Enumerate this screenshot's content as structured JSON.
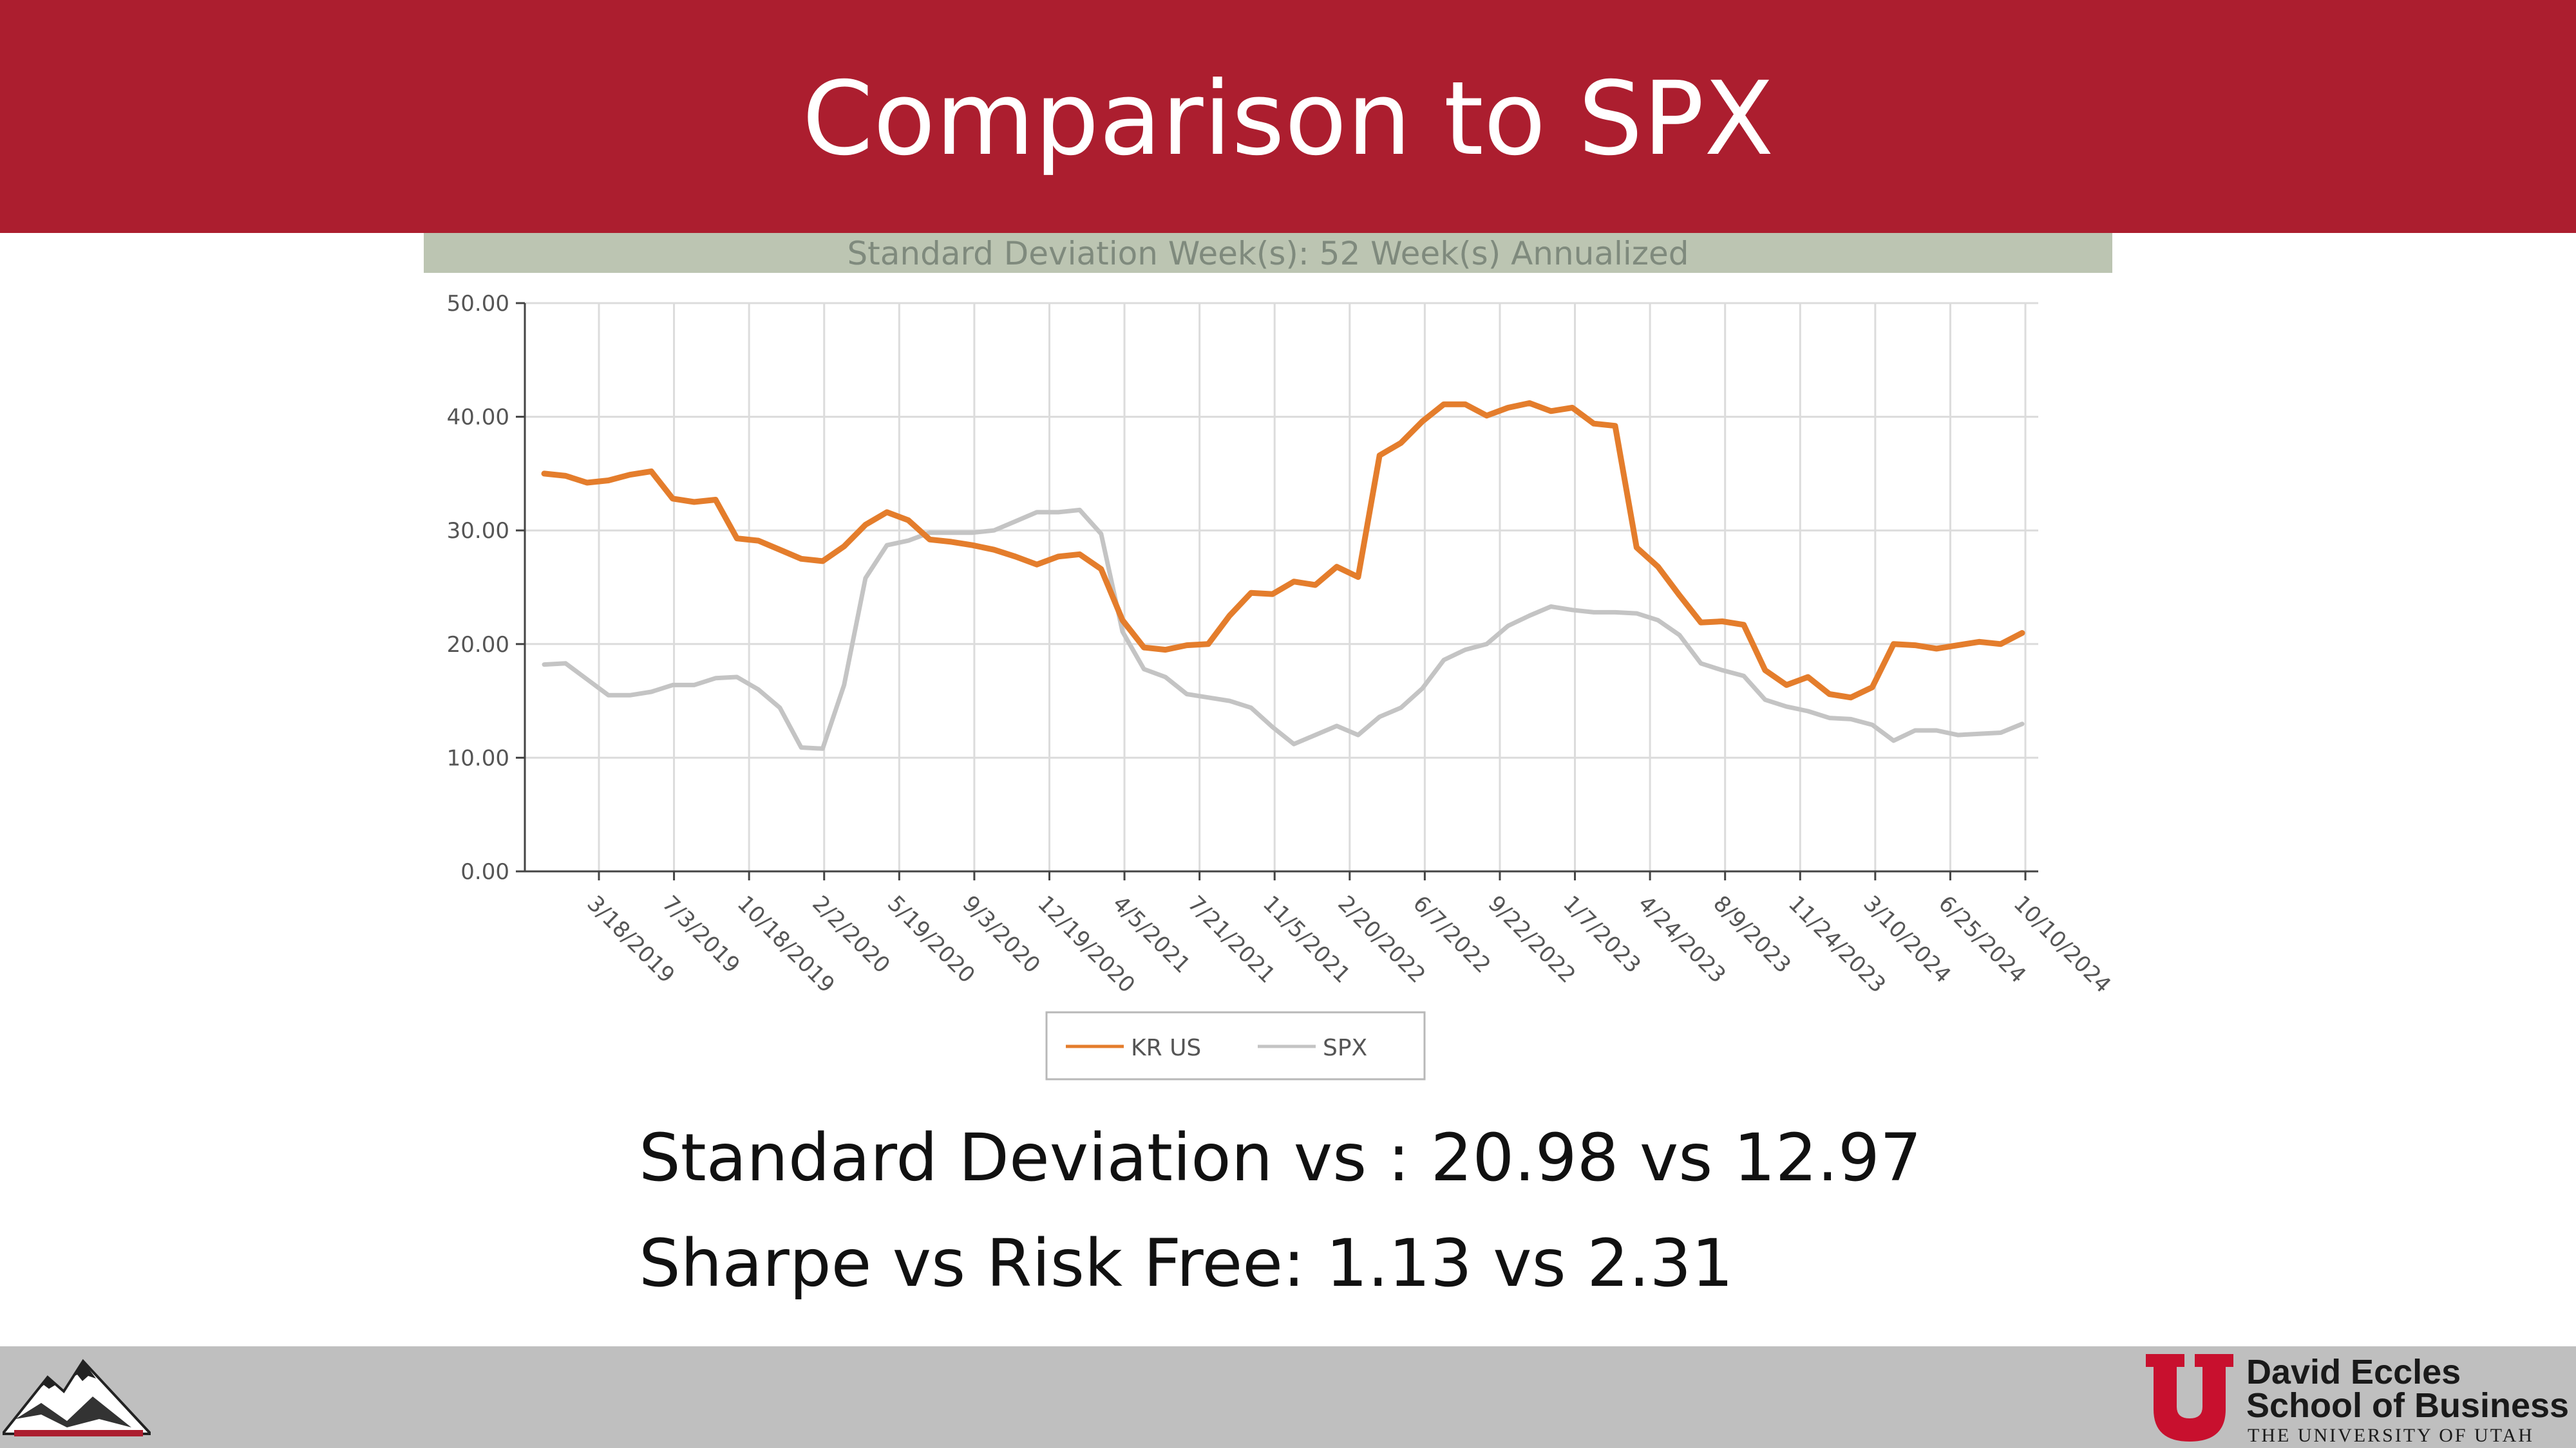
{
  "slide": {
    "title": "Comparison to SPX",
    "stats": [
      "Standard Deviation vs : 20.98 vs 12.97",
      "Sharpe vs Risk Free: 1.13 vs 2.31"
    ]
  },
  "footer": {
    "left_logo_icon": "mountain-logo-icon",
    "right_logo_icon": "university-u-logo-icon",
    "school_name_line1": "David Eccles",
    "school_name_line2": "School of Business",
    "university": "THE UNIVERSITY OF UTAH"
  },
  "colors": {
    "title_bar": "#ac1e2f",
    "header_band": "#bcc5b2",
    "kr_series": "#e47d2c",
    "spx_series": "#c4c4c4",
    "footer_bar": "#bfbfbf"
  },
  "chart_data": {
    "type": "line",
    "title": "Standard Deviation Week(s): 52 Week(s) Annualized",
    "xlabel": "",
    "ylabel": "",
    "ylim": [
      0,
      50
    ],
    "yticks": [
      "0.00",
      "10.00",
      "20.00",
      "30.00",
      "40.00",
      "50.00"
    ],
    "xticks": [
      "3/18/2019",
      "7/3/2019",
      "10/18/2019",
      "2/2/2020",
      "5/19/2020",
      "9/3/2020",
      "12/19/2020",
      "4/5/2021",
      "7/21/2021",
      "11/5/2021",
      "2/20/2022",
      "6/7/2022",
      "9/22/2022",
      "1/7/2023",
      "4/24/2023",
      "8/9/2023",
      "11/24/2023",
      "3/10/2024",
      "6/25/2024",
      "10/10/2024"
    ],
    "grid": true,
    "legend": "bottom-center",
    "series": [
      {
        "name": "KR US",
        "values": [
          35.0,
          34.8,
          34.2,
          34.4,
          34.9,
          35.2,
          32.8,
          32.5,
          32.7,
          29.3,
          29.1,
          28.3,
          27.5,
          27.3,
          28.6,
          30.5,
          31.6,
          30.9,
          29.2,
          29.0,
          28.7,
          28.3,
          27.7,
          27.0,
          27.7,
          27.9,
          26.6,
          22.1,
          19.7,
          19.5,
          19.9,
          20.0,
          22.5,
          24.5,
          24.4,
          25.5,
          25.2,
          26.8,
          25.9,
          36.6,
          37.7,
          39.6,
          41.1,
          41.1,
          40.1,
          40.8,
          41.2,
          40.5,
          40.8,
          39.4,
          39.2,
          28.5,
          26.8,
          24.3,
          21.9,
          22.0,
          21.7,
          17.7,
          16.4,
          17.1,
          15.6,
          15.3,
          16.2,
          20.0,
          19.9,
          19.6,
          19.9,
          20.2,
          20.0,
          20.98
        ]
      },
      {
        "name": "SPX",
        "values": [
          18.2,
          18.3,
          16.9,
          15.5,
          15.5,
          15.8,
          16.4,
          16.4,
          17.0,
          17.1,
          16.0,
          14.4,
          10.9,
          10.8,
          16.4,
          25.8,
          28.7,
          29.1,
          29.8,
          29.8,
          29.8,
          30.0,
          30.8,
          31.6,
          31.6,
          31.8,
          29.7,
          21.1,
          17.8,
          17.1,
          15.6,
          15.3,
          15.0,
          14.4,
          12.7,
          11.2,
          12.0,
          12.8,
          12.0,
          13.6,
          14.4,
          16.1,
          18.6,
          19.5,
          20.0,
          21.6,
          22.5,
          23.3,
          23.0,
          22.8,
          22.8,
          22.7,
          22.1,
          20.8,
          18.3,
          17.7,
          17.2,
          15.1,
          14.5,
          14.1,
          13.5,
          13.4,
          12.9,
          11.5,
          12.4,
          12.4,
          12.0,
          12.1,
          12.2,
          12.97
        ]
      }
    ]
  }
}
